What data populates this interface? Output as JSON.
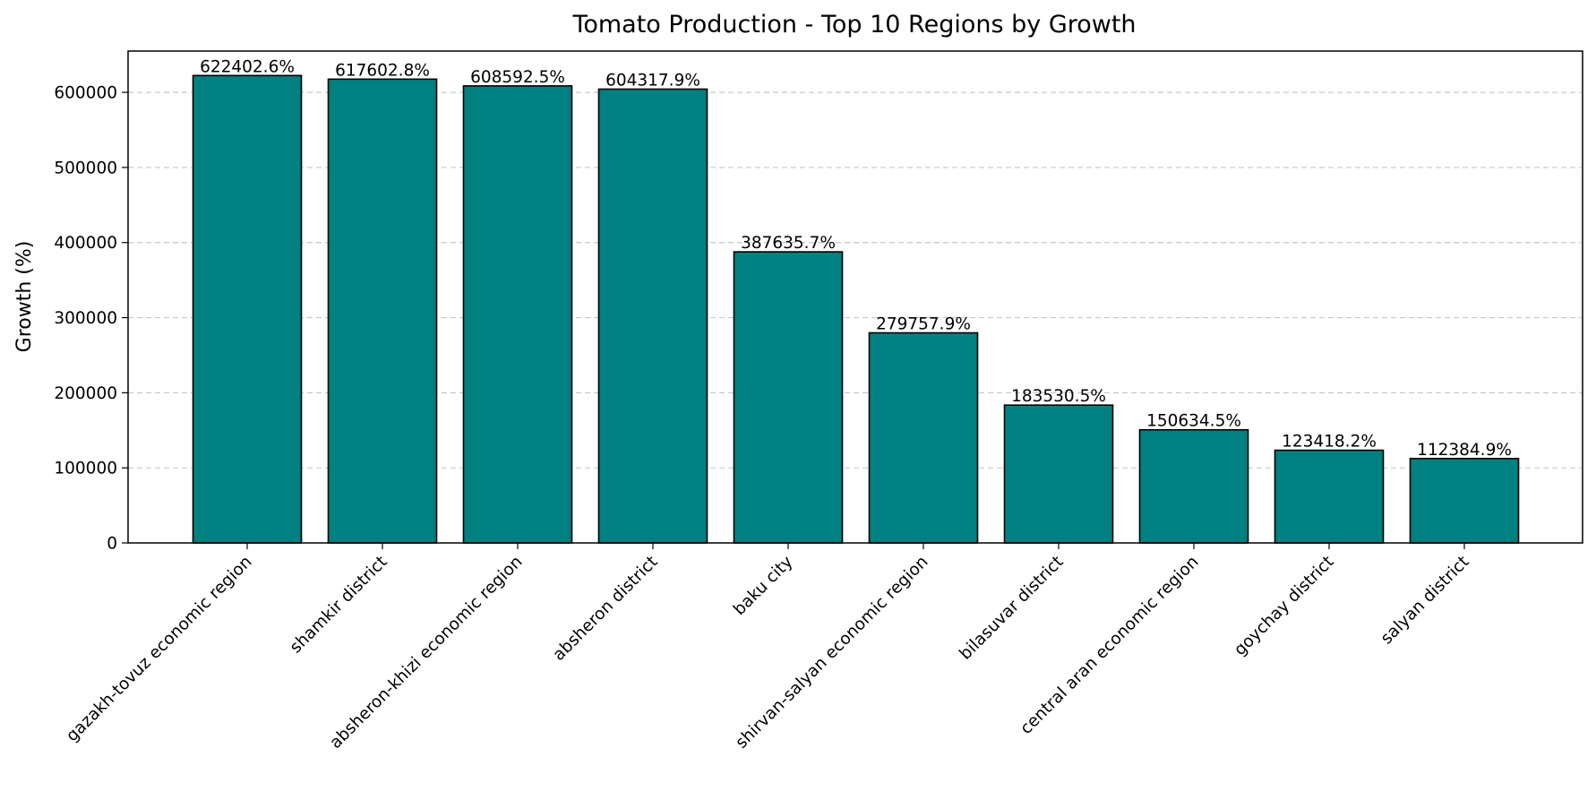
{
  "chart_data": {
    "type": "bar",
    "title": "Tomato Production - Top 10 Regions by Growth",
    "xlabel": "",
    "ylabel": "Growth (%)",
    "ylim": [
      0,
      655000
    ],
    "yticks": [
      0,
      100000,
      200000,
      300000,
      400000,
      500000,
      600000
    ],
    "ytick_labels": [
      "0",
      "100000",
      "200000",
      "300000",
      "400000",
      "500000",
      "600000"
    ],
    "grid": "horizontal, dashed",
    "legend": "none",
    "categories": [
      "gazakh-tovuz economic region",
      "shamkir district",
      "absheron-khizi economic region",
      "absheron district",
      "baku city",
      "shirvan-salyan economic region",
      "bilasuvar district",
      "central aran economic region",
      "goychay district",
      "salyan district"
    ],
    "values": [
      622402.6,
      617602.8,
      608592.5,
      604317.9,
      387635.7,
      279757.9,
      183530.5,
      150634.5,
      123418.2,
      112384.9
    ],
    "value_labels": [
      "622402.6%",
      "617602.8%",
      "608592.5%",
      "604317.9%",
      "387635.7%",
      "279757.9%",
      "183530.5%",
      "150634.5%",
      "123418.2%",
      "112384.9%"
    ],
    "colors": {
      "bar": "#008080",
      "bar_edge": "#000000",
      "grid": "#c8c8c8",
      "axis": "#000000"
    }
  }
}
